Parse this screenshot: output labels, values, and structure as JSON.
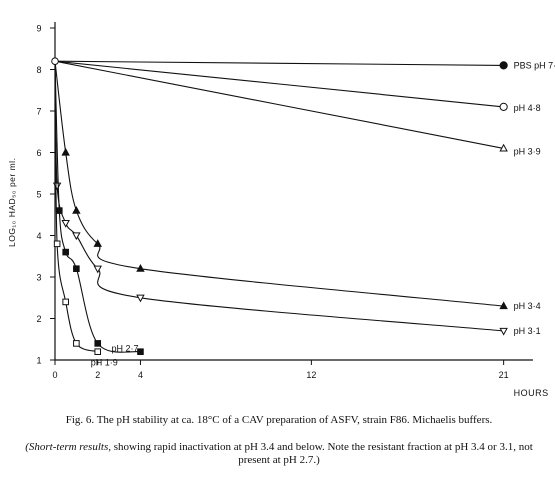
{
  "chart_data": {
    "type": "line",
    "xlabel": "HOURS",
    "ylabel": "LOG₁₀ HAD₅₀ per ml.",
    "xlim": [
      0,
      22
    ],
    "ylim": [
      1,
      9
    ],
    "x_ticks": [
      0,
      2,
      4,
      12,
      21
    ],
    "y_ticks": [
      1,
      2,
      3,
      4,
      5,
      6,
      7,
      8,
      9
    ],
    "origin": [
      0,
      8.2
    ],
    "series": [
      {
        "name": "PBS pH 7·4",
        "marker": "filled-circle",
        "x": [
          0,
          21
        ],
        "y": [
          8.2,
          8.1
        ]
      },
      {
        "name": "pH 4·8",
        "marker": "open-circle",
        "x": [
          0,
          21
        ],
        "y": [
          8.2,
          7.1
        ]
      },
      {
        "name": "pH 3·9",
        "marker": "open-triangle-up",
        "x": [
          0,
          21
        ],
        "y": [
          8.2,
          6.1
        ]
      },
      {
        "name": "pH 3·4",
        "marker": "filled-triangle-up",
        "x": [
          0,
          0.5,
          1,
          2,
          4,
          21
        ],
        "y": [
          8.2,
          6.0,
          4.6,
          3.8,
          3.2,
          2.3
        ]
      },
      {
        "name": "pH 3·1",
        "marker": "open-triangle-down",
        "x": [
          0,
          0.1,
          0.5,
          1,
          2,
          4,
          21
        ],
        "y": [
          8.2,
          5.2,
          4.3,
          4.0,
          3.2,
          2.5,
          1.7
        ]
      },
      {
        "name": "pH 2·7",
        "marker": "filled-square",
        "x": [
          0,
          0.2,
          0.5,
          1,
          2,
          4
        ],
        "y": [
          8.2,
          4.6,
          3.6,
          3.2,
          1.4,
          1.2
        ]
      },
      {
        "name": "pH 1·9",
        "marker": "open-square",
        "x": [
          0,
          0.1,
          0.5,
          1,
          2
        ],
        "y": [
          8.2,
          3.8,
          2.4,
          1.4,
          1.2
        ]
      }
    ]
  },
  "caption": {
    "main": "Fig. 6. The pH stability at ca. 18°C of a CAV preparation of ASFV, strain F86. Michaelis buffers.",
    "note_lead": "(Short-term results,",
    "note_rest": " showing rapid inactivation at pH 3.4 and below. Note the resistant fraction at pH 3.4 or 3.1, not present at pH 2.7.)"
  }
}
